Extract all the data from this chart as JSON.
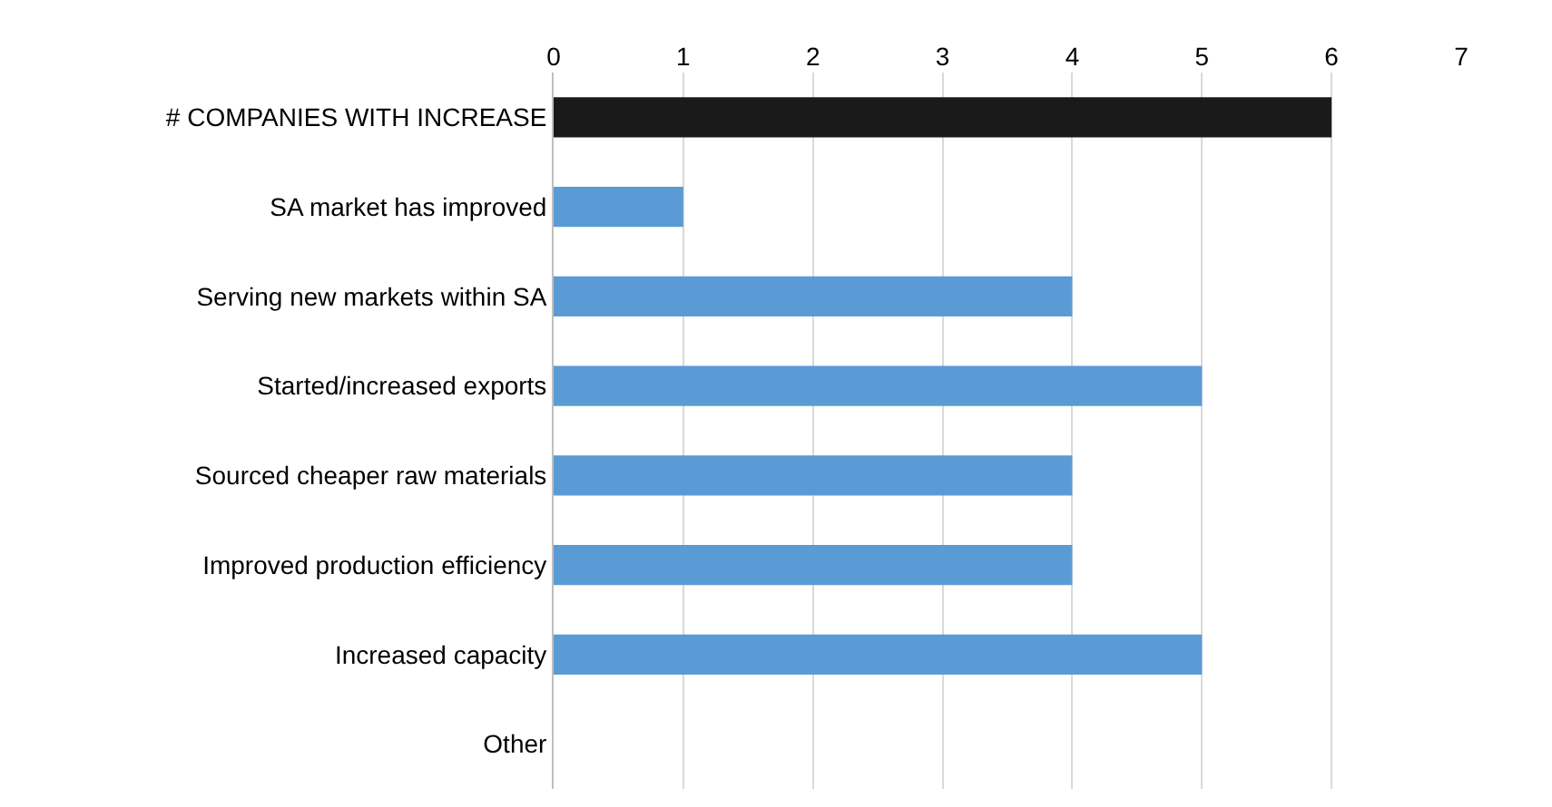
{
  "chart_data": {
    "type": "bar",
    "orientation": "horizontal",
    "categories": [
      "# COMPANIES WITH INCREASE",
      "SA market has improved",
      "Serving new markets within SA",
      "Started/increased exports",
      "Sourced cheaper raw materials",
      "Improved production efficiency",
      "Increased capacity",
      "Other"
    ],
    "values": [
      6,
      1,
      4,
      5,
      4,
      4,
      5,
      0
    ],
    "colors": [
      "#1a1a1a",
      "#5b9bd5",
      "#5b9bd5",
      "#5b9bd5",
      "#5b9bd5",
      "#5b9bd5",
      "#5b9bd5",
      "#5b9bd5"
    ],
    "xlim": [
      0,
      7
    ],
    "xticks": [
      0,
      1,
      2,
      3,
      4,
      5,
      6,
      7
    ],
    "grid": "x"
  }
}
